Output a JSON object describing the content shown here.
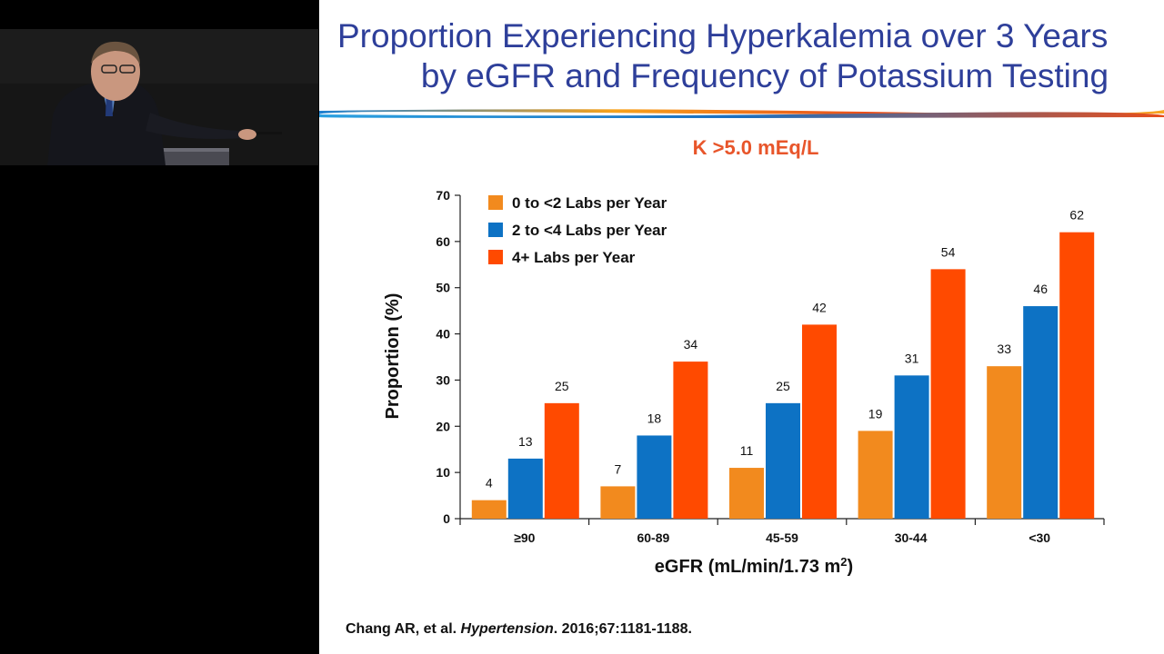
{
  "slide": {
    "title_line1": "Proportion Experiencing Hyperkalemia over 3 Years",
    "title_line2": "by eGFR and Frequency of Potassium Testing",
    "subtitle": "K >5.0 mEq/L",
    "citation_author": "Chang AR, et al. ",
    "citation_journal": "Hypertension",
    "citation_rest": ". 2016;67:1181-1188."
  },
  "colors": {
    "title": "#2e3f9a",
    "subtitle": "#e8552a",
    "series": [
      "#f28a1e",
      "#0d72c4",
      "#ff4a00"
    ]
  },
  "chart_data": {
    "type": "bar",
    "categories": [
      "≥90",
      "60-89",
      "45-59",
      "30-44",
      "<30"
    ],
    "series": [
      {
        "name": "0 to <2 Labs per Year",
        "values": [
          4,
          7,
          11,
          19,
          33
        ],
        "data_labels": [
          "4",
          "7",
          "11",
          "19",
          "33"
        ]
      },
      {
        "name": "2 to <4 Labs per Year",
        "values": [
          13,
          18,
          25,
          31,
          46
        ],
        "data_labels": [
          "13",
          "18",
          "25",
          "31",
          "46"
        ]
      },
      {
        "name": "4+ Labs per Year",
        "values": [
          25,
          34,
          42,
          54,
          62
        ],
        "data_labels": [
          "25",
          "34",
          "42",
          "54",
          "62"
        ]
      }
    ],
    "xlabel": "eGFR (mL/min/1.73 m",
    "xlabel_sup": "2",
    "xlabel_end": ")",
    "ylabel": "Proportion (%)",
    "ylim": [
      0,
      70
    ],
    "yticks": [
      0,
      10,
      20,
      30,
      40,
      50,
      60,
      70
    ],
    "ytick_labels": [
      "0",
      "10",
      "20",
      "30",
      "40",
      "50",
      "60",
      "70"
    ],
    "grid": false,
    "legend_position": "top-left"
  }
}
